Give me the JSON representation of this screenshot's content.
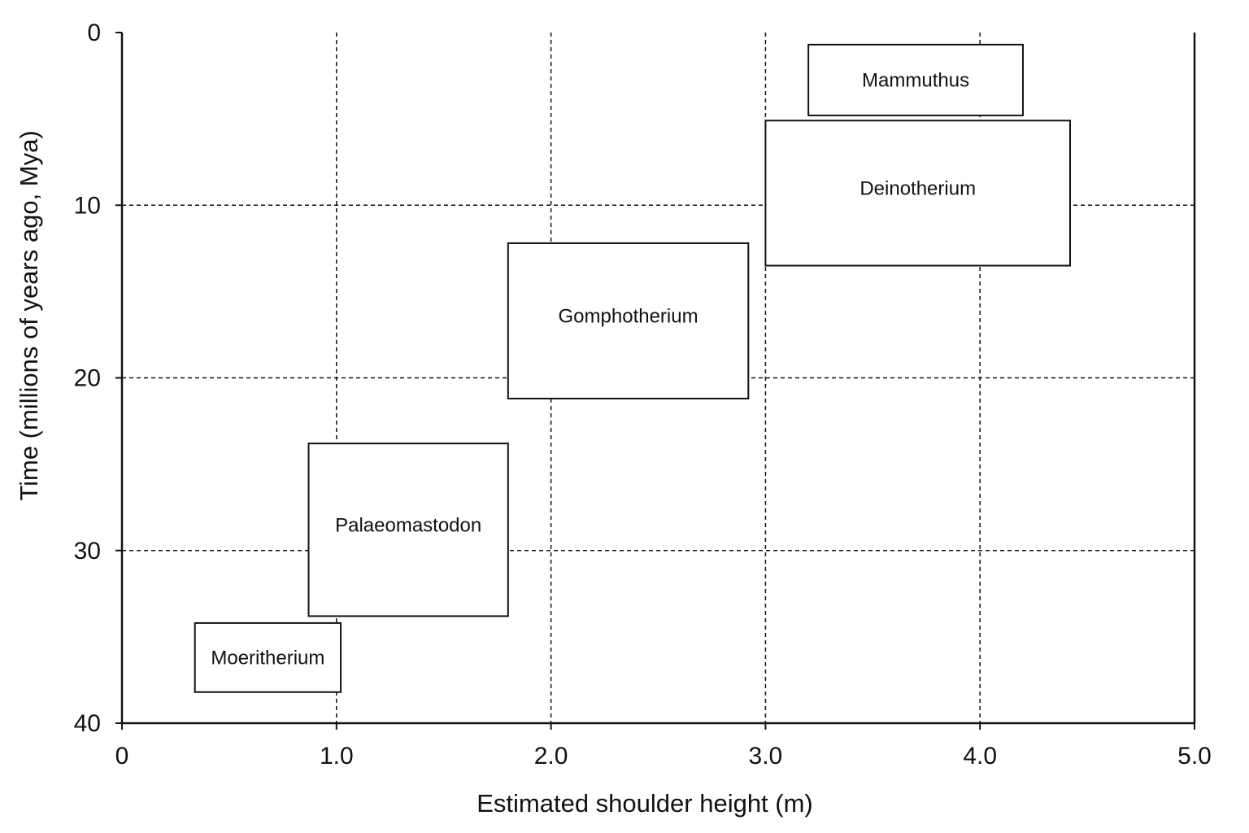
{
  "chart_data": {
    "type": "floating-box",
    "xlabel": "Estimated shoulder height (m)",
    "ylabel": "Time (millions of years ago, Mya)",
    "xlim": [
      0,
      5.0
    ],
    "ylim": [
      0,
      40
    ],
    "y_inverted": true,
    "x_ticks": [
      0,
      1.0,
      2.0,
      3.0,
      4.0,
      5.0
    ],
    "x_tick_labels": [
      "0",
      "1.0",
      "2.0",
      "3.0",
      "4.0",
      "5.0"
    ],
    "y_ticks": [
      0,
      10,
      20,
      30,
      40
    ],
    "y_tick_labels": [
      "0",
      "10",
      "20",
      "30",
      "40"
    ],
    "grid": true,
    "boxes": [
      {
        "label": "Mammuthus",
        "x_min": 3.2,
        "x_max": 4.2,
        "y_min": 0.7,
        "y_max": 4.8
      },
      {
        "label": "Deinotherium",
        "x_min": 3.0,
        "x_max": 4.42,
        "y_min": 5.1,
        "y_max": 13.5
      },
      {
        "label": "Gomphotherium",
        "x_min": 1.8,
        "x_max": 2.92,
        "y_min": 12.2,
        "y_max": 21.2
      },
      {
        "label": "Palaeomastodon",
        "x_min": 0.87,
        "x_max": 1.8,
        "y_min": 23.8,
        "y_max": 33.8
      },
      {
        "label": "Moeritherium",
        "x_min": 0.34,
        "x_max": 1.02,
        "y_min": 34.2,
        "y_max": 38.2
      }
    ]
  }
}
